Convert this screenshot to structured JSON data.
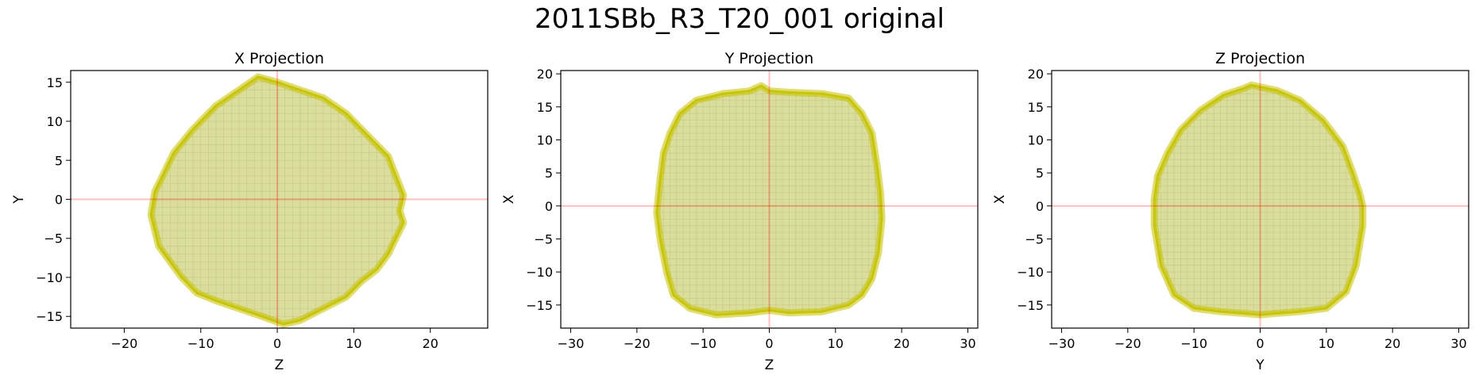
{
  "figure": {
    "title": "2011SBb_R3_T20_001 original"
  },
  "colors": {
    "shape_fill": "#d4d78a",
    "shape_outline": "#c6c200",
    "crosshair": "#ff0000",
    "axis": "#000000"
  },
  "chart_data": [
    {
      "type": "area",
      "title": "X Projection",
      "xlabel": "Z",
      "ylabel": "Y",
      "xlim": [
        -27,
        27.5
      ],
      "ylim": [
        -16.5,
        16.5
      ],
      "xticks": [
        -20,
        -10,
        0,
        10,
        20
      ],
      "yticks": [
        -15,
        -10,
        -5,
        0,
        5,
        10,
        15
      ],
      "crosshair": [
        0,
        0
      ],
      "outline": {
        "x": [
          0,
          3,
          6,
          9,
          11,
          13,
          14.5,
          15.5,
          16.5,
          16,
          16.5,
          15.5,
          14.5,
          13,
          11,
          9,
          7,
          5,
          3,
          0.8,
          -2,
          -5,
          -8,
          -10.5,
          -12.5,
          -14,
          -15.5,
          -16.5,
          -16,
          -15,
          -13.5,
          -11,
          -8,
          -5,
          -2.5
        ],
        "y": [
          15,
          14,
          13,
          11,
          9,
          7,
          5.5,
          3,
          0.5,
          -1.5,
          -3,
          -5,
          -7,
          -9,
          -10.5,
          -12.5,
          -13.5,
          -14.5,
          -15.5,
          -16,
          -15,
          -14,
          -13,
          -12,
          -10,
          -8,
          -6,
          -2,
          1,
          3,
          6,
          9,
          12,
          14,
          15.7
        ]
      }
    },
    {
      "type": "area",
      "title": "Y Projection",
      "xlabel": "Z",
      "ylabel": "X",
      "xlim": [
        -31.5,
        31.5
      ],
      "ylim": [
        -18.5,
        20.5
      ],
      "xticks": [
        -30,
        -20,
        -10,
        0,
        10,
        20,
        30
      ],
      "yticks": [
        -15,
        -10,
        -5,
        0,
        5,
        10,
        15,
        20
      ],
      "crosshair": [
        0,
        0
      ],
      "outline": {
        "x": [
          -1.2,
          0,
          3,
          8,
          12,
          14,
          15.5,
          16.3,
          16.8,
          17,
          16.5,
          15.5,
          14,
          12,
          8,
          3,
          0,
          -3,
          -8,
          -12,
          -14.5,
          -15.5,
          -16.5,
          -17,
          -16.5,
          -16,
          -15,
          -13.5,
          -11,
          -7,
          -3
        ],
        "y": [
          18.2,
          17.4,
          17.2,
          17,
          16.3,
          14,
          11,
          6,
          2,
          -2,
          -7,
          -11,
          -13.5,
          -15,
          -16,
          -16.2,
          -15.8,
          -16.2,
          -16.5,
          -15.5,
          -13.5,
          -10,
          -5,
          -1,
          4,
          8,
          11,
          14,
          16,
          17,
          17.4
        ]
      }
    },
    {
      "type": "area",
      "title": "Z Projection",
      "xlabel": "Y",
      "ylabel": "X",
      "xlim": [
        -31.5,
        31.5
      ],
      "ylim": [
        -18.5,
        20.5
      ],
      "xticks": [
        -30,
        -20,
        -10,
        0,
        10,
        20,
        30
      ],
      "yticks": [
        -15,
        -10,
        -5,
        0,
        5,
        10,
        15,
        20
      ],
      "crosshair": [
        0,
        0
      ],
      "outline": {
        "x": [
          -1.3,
          0,
          2.5,
          6,
          9.5,
          12.5,
          14,
          15,
          15.5,
          15.5,
          14.5,
          13,
          10,
          6,
          2,
          0,
          -2,
          -6,
          -10,
          -13,
          -15,
          -16,
          -16,
          -15.5,
          -14,
          -12,
          -9,
          -5.5,
          -2.5
        ],
        "y": [
          18.3,
          18,
          17.5,
          16,
          13,
          9,
          5,
          2,
          0,
          -3,
          -9,
          -13,
          -15.5,
          -16,
          -16.3,
          -16.5,
          -16.3,
          -16,
          -15.5,
          -13.5,
          -9,
          -3,
          1,
          4.5,
          8,
          11.5,
          14.5,
          16.8,
          17.8
        ]
      }
    }
  ]
}
